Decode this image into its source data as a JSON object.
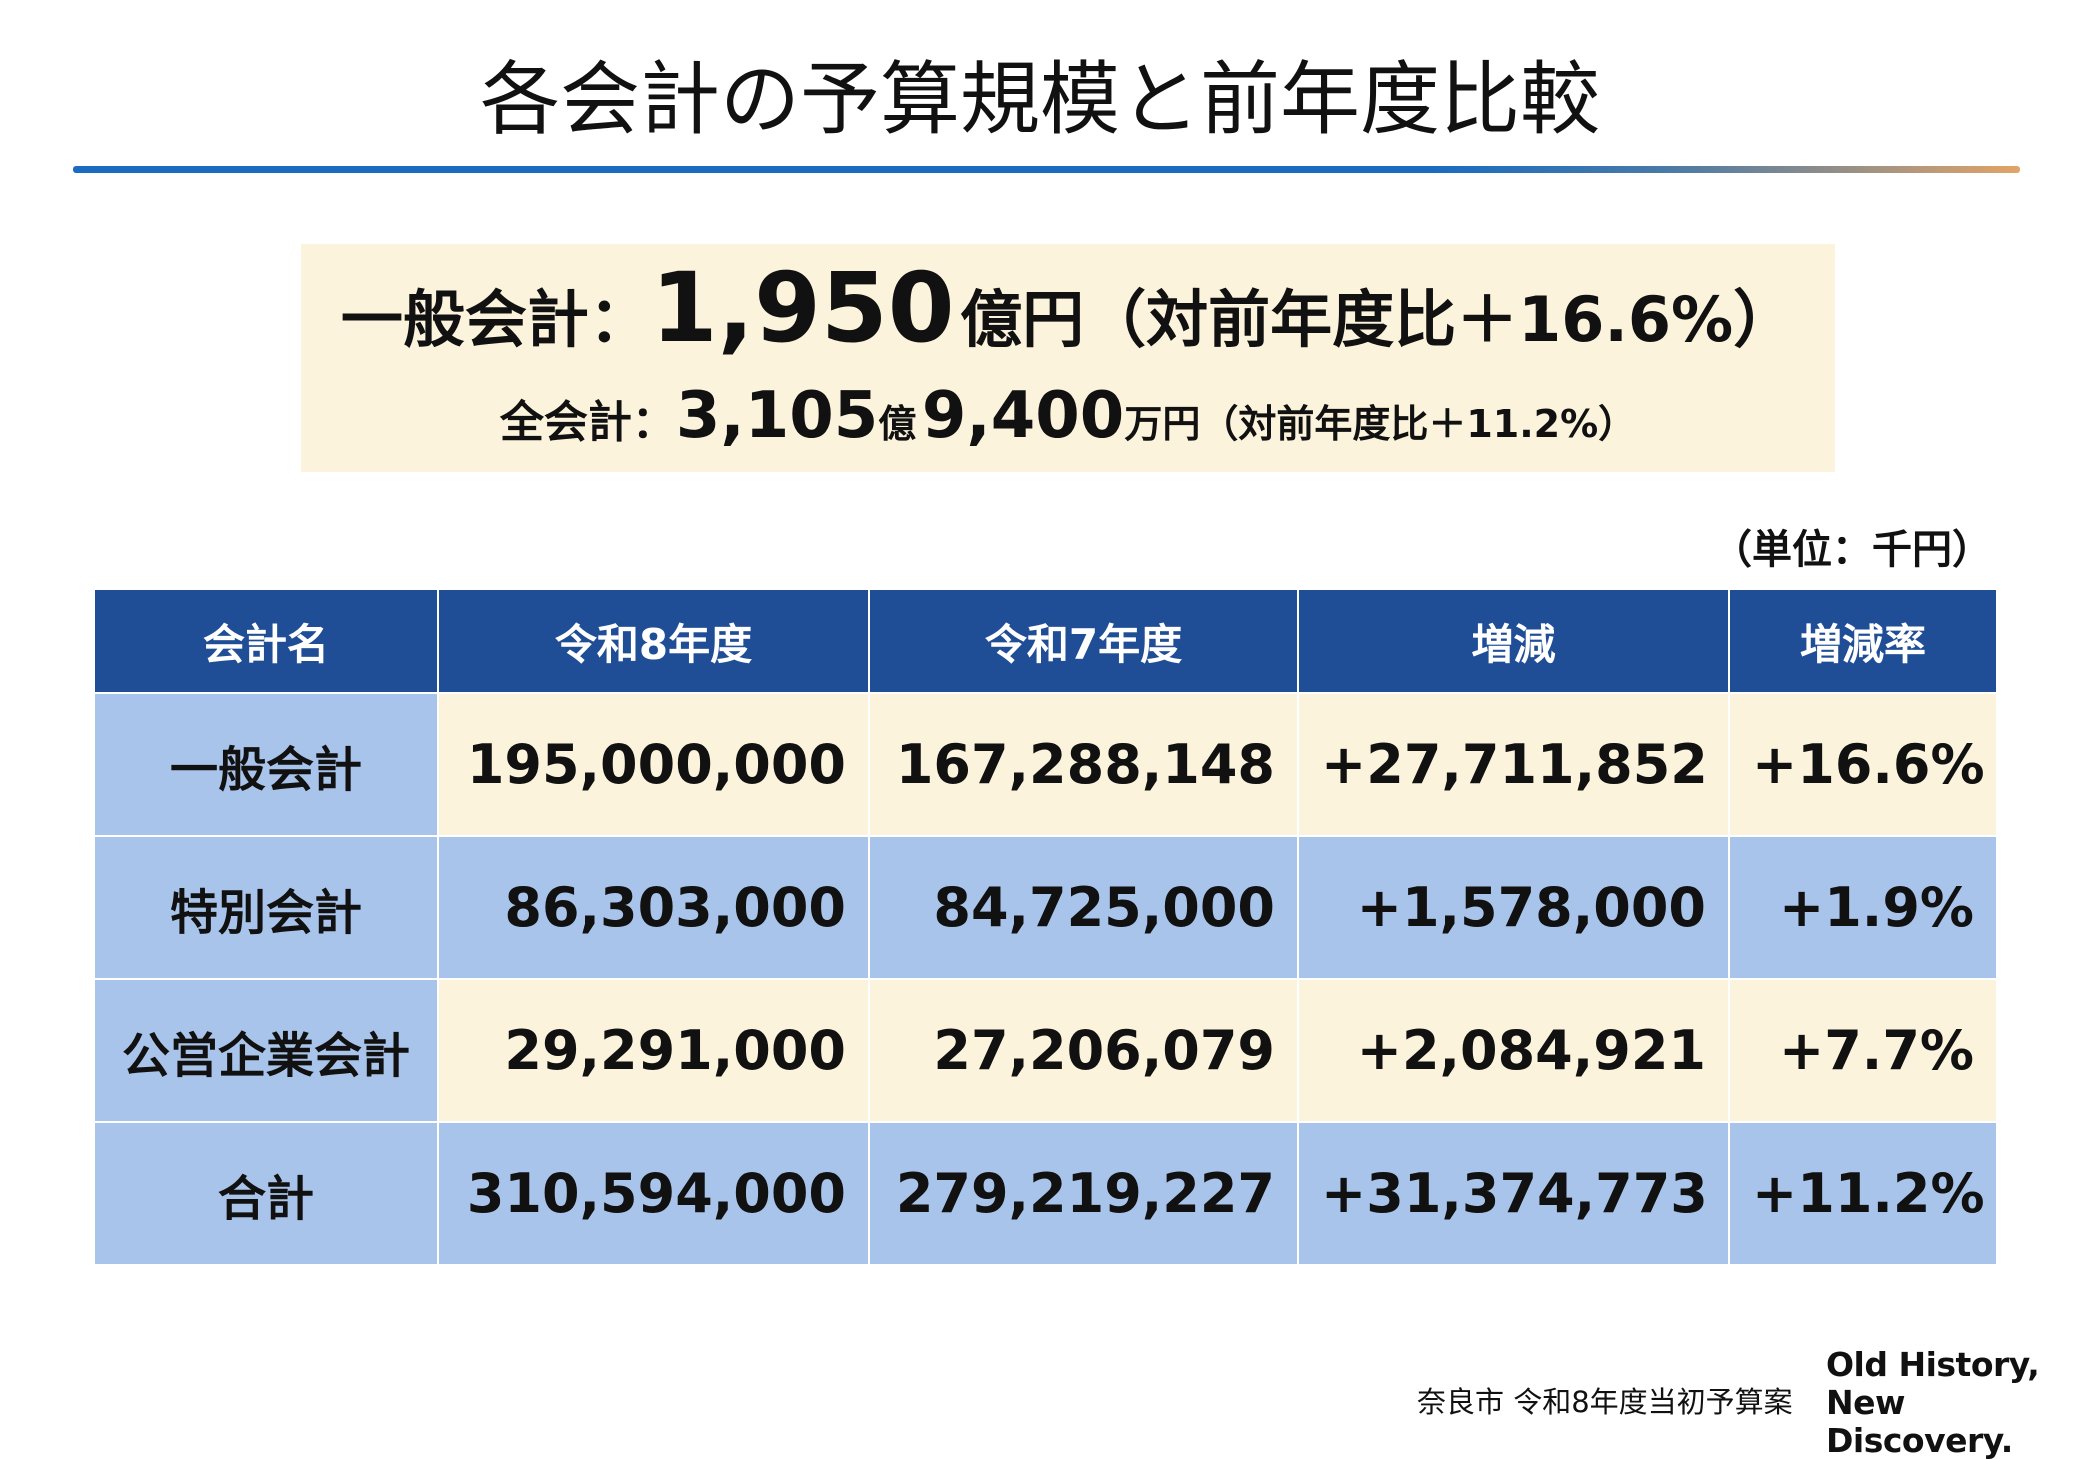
{
  "header": {
    "title": "各会計の予算規模と前年度比較"
  },
  "summary": {
    "general": {
      "label": "一般会計：",
      "amount": "1,950",
      "suffix": "億円（対前年度比＋16.6%）"
    },
    "total": {
      "label": "全会計：",
      "amount_oku": "3,105",
      "oku": "億",
      "amount_man": "9,400",
      "suffix": "万円（対前年度比＋11.2%）"
    }
  },
  "unit": "（単位：千円）",
  "table": {
    "headers": [
      "会計名",
      "令和8年度",
      "令和7年度",
      "増減",
      "増減率"
    ],
    "rows": [
      [
        "一般会計",
        "195,000,000",
        "167,288,148",
        "+27,711,852",
        "+16.6%"
      ],
      [
        "特別会計",
        "86,303,000",
        "84,725,000",
        "+1,578,000",
        "+1.9%"
      ],
      [
        "公営企業会計",
        "29,291,000",
        "27,206,079",
        "+2,084,921",
        "+7.7%"
      ],
      [
        "合計",
        "310,594,000",
        "279,219,227",
        "+31,374,773",
        "+11.2%"
      ]
    ]
  },
  "footer": {
    "source": "奈良市 令和8年度当初予算案",
    "logo": [
      "Old History,",
      "New Discovery."
    ]
  }
}
